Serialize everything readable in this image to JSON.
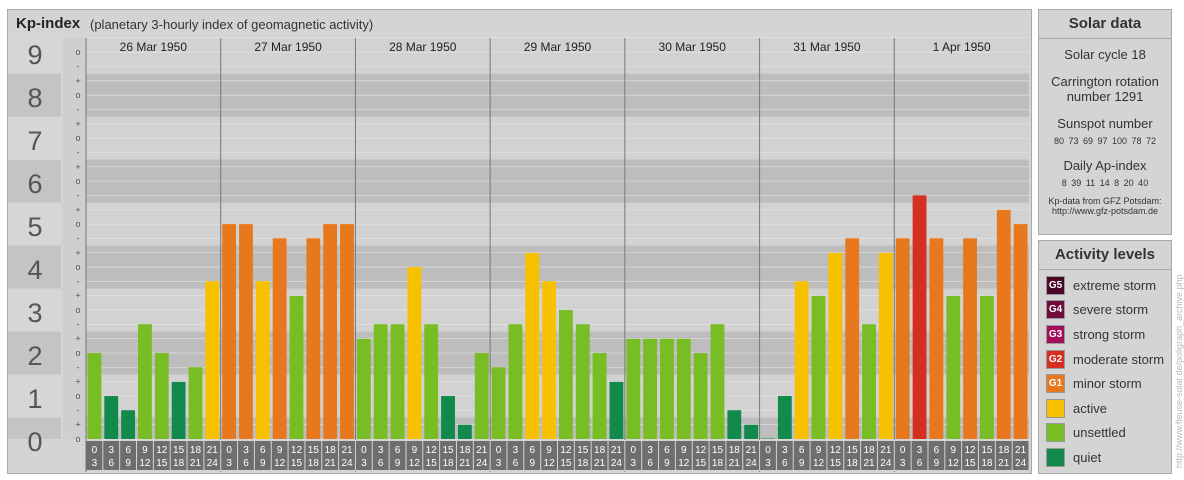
{
  "header": {
    "title": "Kp-index",
    "subtitle": "(planetary 3-hourly index of geomagnetic activity)"
  },
  "solar": {
    "heading": "Solar data",
    "cycle": "Solar cycle 18",
    "carrington_line1": "Carrington rotation",
    "carrington_line2": "number 1291",
    "sunspot_heading": "Sunspot number",
    "sunspot_values": "80  73  69  97  100  78  72",
    "ap_heading": "Daily Ap-index",
    "ap_values": "8  39  11  14  8  20  40",
    "source_line1": "Kp-data from GFZ Potsdam:",
    "source_line2": "http://www.gfz-potsdam.de"
  },
  "activity": {
    "heading": "Activity levels",
    "levels": [
      {
        "badge": "G5",
        "label": "extreme storm",
        "color": "#4b0727"
      },
      {
        "badge": "G4",
        "label": "severe storm",
        "color": "#6e0b3a"
      },
      {
        "badge": "G3",
        "label": "strong storm",
        "color": "#a50e5a"
      },
      {
        "badge": "G2",
        "label": "moderate storm",
        "color": "#d5301f"
      },
      {
        "badge": "G1",
        "label": "minor storm",
        "color": "#e8781d"
      },
      {
        "badge": "",
        "label": "active",
        "color": "#f8c100"
      },
      {
        "badge": "",
        "label": "unsettled",
        "color": "#78bd23"
      },
      {
        "badge": "",
        "label": "quiet",
        "color": "#118a4b"
      }
    ]
  },
  "watermark": "http://www.fleuse-solar.de/poligraph_archive.php",
  "chart_data": {
    "type": "bar",
    "title": "Kp-index",
    "y_ticks": [
      "0",
      "1",
      "2",
      "3",
      "4",
      "5",
      "6",
      "7",
      "8",
      "9"
    ],
    "sub_ticks": [
      "o",
      "+",
      "-",
      "o",
      "+",
      "-",
      "o",
      "+",
      "-",
      "o",
      "+",
      "-",
      "o",
      "+",
      "-",
      "o",
      "+",
      "-",
      "o",
      "+",
      "-",
      "o",
      "+",
      "-",
      "o",
      "+",
      "-",
      "o"
    ],
    "ylim": [
      0,
      9.33
    ],
    "days": [
      "26 Mar 1950",
      "27 Mar 1950",
      "28 Mar 1950",
      "29 Mar 1950",
      "30 Mar 1950",
      "31 Mar 1950",
      "1 Apr 1950"
    ],
    "hour_start": [
      "0",
      "3",
      "6",
      "9",
      "12",
      "15",
      "18",
      "21"
    ],
    "hour_end": [
      "3",
      "6",
      "9",
      "12",
      "15",
      "18",
      "21",
      "24"
    ],
    "values": [
      2.0,
      1.0,
      0.67,
      2.67,
      2.0,
      1.33,
      1.67,
      3.67,
      5.0,
      5.0,
      3.67,
      4.67,
      3.33,
      4.67,
      5.0,
      5.0,
      2.33,
      2.67,
      2.67,
      4.0,
      2.67,
      1.0,
      0.33,
      2.0,
      1.67,
      2.67,
      4.33,
      3.67,
      3.0,
      2.67,
      2.0,
      1.33,
      2.33,
      2.33,
      2.33,
      2.33,
      2.0,
      2.67,
      0.67,
      0.33,
      0.0,
      1.0,
      3.67,
      3.33,
      4.33,
      4.67,
      2.67,
      4.33,
      4.67,
      5.67,
      4.67,
      3.33,
      4.67,
      3.33,
      5.33,
      5.0
    ],
    "colors": {
      "quiet": "#118a4b",
      "unsettled": "#78bd23",
      "active": "#f8c100",
      "minor": "#e8781d",
      "moderate": "#d5301f"
    }
  }
}
